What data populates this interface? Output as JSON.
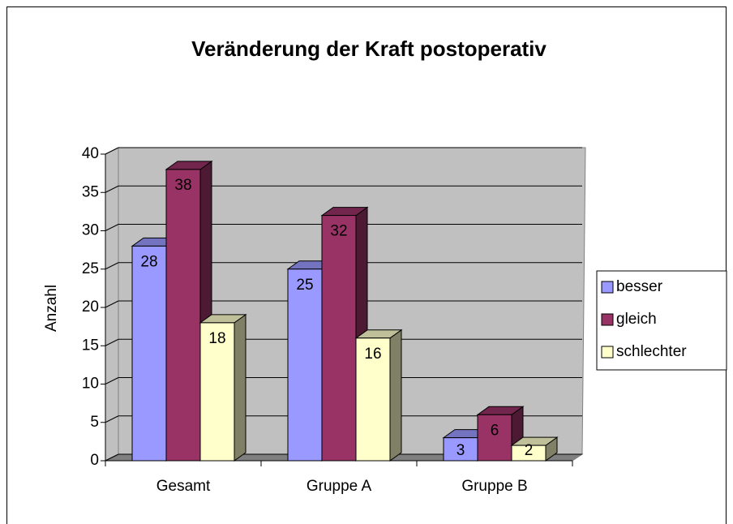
{
  "chart_data": {
    "type": "bar",
    "title": "Veränderung der Kraft postoperativ",
    "y_label": "Anzahl",
    "categories": [
      "Gesamt",
      "Gruppe A",
      "Gruppe B"
    ],
    "series": [
      {
        "name": "besser",
        "color": "#9999ff",
        "values": [
          28,
          25,
          3
        ]
      },
      {
        "name": "gleich",
        "color": "#993366",
        "values": [
          38,
          32,
          6
        ]
      },
      {
        "name": "schlechter",
        "color": "#ffffcc",
        "values": [
          18,
          16,
          2
        ]
      }
    ],
    "ylim": [
      0,
      40
    ],
    "yticks": [
      0,
      5,
      10,
      15,
      20,
      25,
      30,
      35,
      40
    ],
    "grid": true,
    "legend": "right"
  }
}
